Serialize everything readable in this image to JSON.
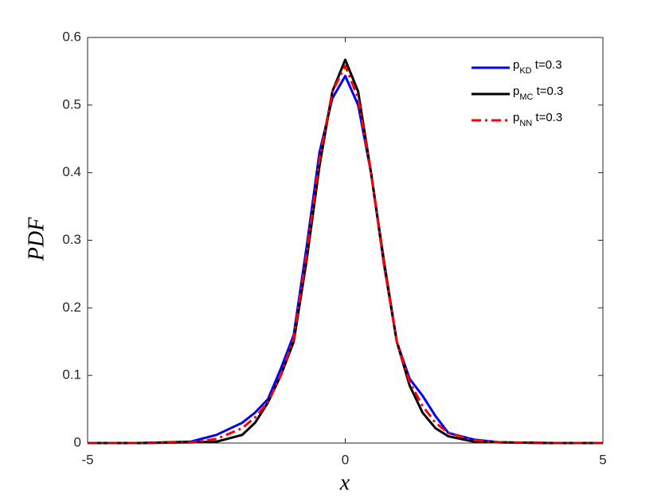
{
  "chart_data": {
    "type": "line",
    "xlabel": "x",
    "ylabel": "PDF",
    "x": [
      -5,
      -4,
      -3,
      -2.5,
      -2,
      -1.75,
      -1.5,
      -1.25,
      -1,
      -0.75,
      -0.5,
      -0.25,
      0,
      0.25,
      0.5,
      0.75,
      1,
      1.25,
      1.5,
      1.75,
      2,
      2.5,
      3,
      4,
      5
    ],
    "series": [
      {
        "name": {
          "base": "p",
          "sub": "KD",
          "rest": " t=0.3"
        },
        "color": "#0000ff",
        "dash": "solid",
        "values": [
          0,
          0,
          0.002,
          0.012,
          0.03,
          0.045,
          0.065,
          0.11,
          0.16,
          0.29,
          0.43,
          0.51,
          0.543,
          0.5,
          0.4,
          0.265,
          0.15,
          0.095,
          0.07,
          0.04,
          0.015,
          0.005,
          0.001,
          0,
          0
        ]
      },
      {
        "name": {
          "base": "p",
          "sub": "MC",
          "rest": " t=0.3"
        },
        "color": "#000000",
        "dash": "solid",
        "values": [
          0,
          0,
          0.001,
          0.002,
          0.012,
          0.03,
          0.06,
          0.1,
          0.15,
          0.27,
          0.41,
          0.52,
          0.567,
          0.52,
          0.4,
          0.27,
          0.15,
          0.085,
          0.045,
          0.022,
          0.01,
          0.002,
          0.001,
          0,
          0
        ]
      },
      {
        "name": {
          "base": "p",
          "sub": "NN",
          "rest": " t=0.3"
        },
        "color": "#ff0000",
        "dash": "dashdot",
        "values": [
          0,
          0,
          0.001,
          0.006,
          0.022,
          0.038,
          0.06,
          0.1,
          0.155,
          0.28,
          0.42,
          0.52,
          0.558,
          0.51,
          0.4,
          0.265,
          0.15,
          0.09,
          0.055,
          0.03,
          0.015,
          0.004,
          0.001,
          0,
          0
        ]
      }
    ],
    "xlim": [
      -5,
      5
    ],
    "xticks": [
      -5,
      0,
      5
    ],
    "ylim": [
      0,
      0.6
    ],
    "yticks": [
      0,
      0.1,
      0.2,
      0.3,
      0.4,
      0.5,
      0.6
    ],
    "legend": "top-right",
    "grid": false
  }
}
